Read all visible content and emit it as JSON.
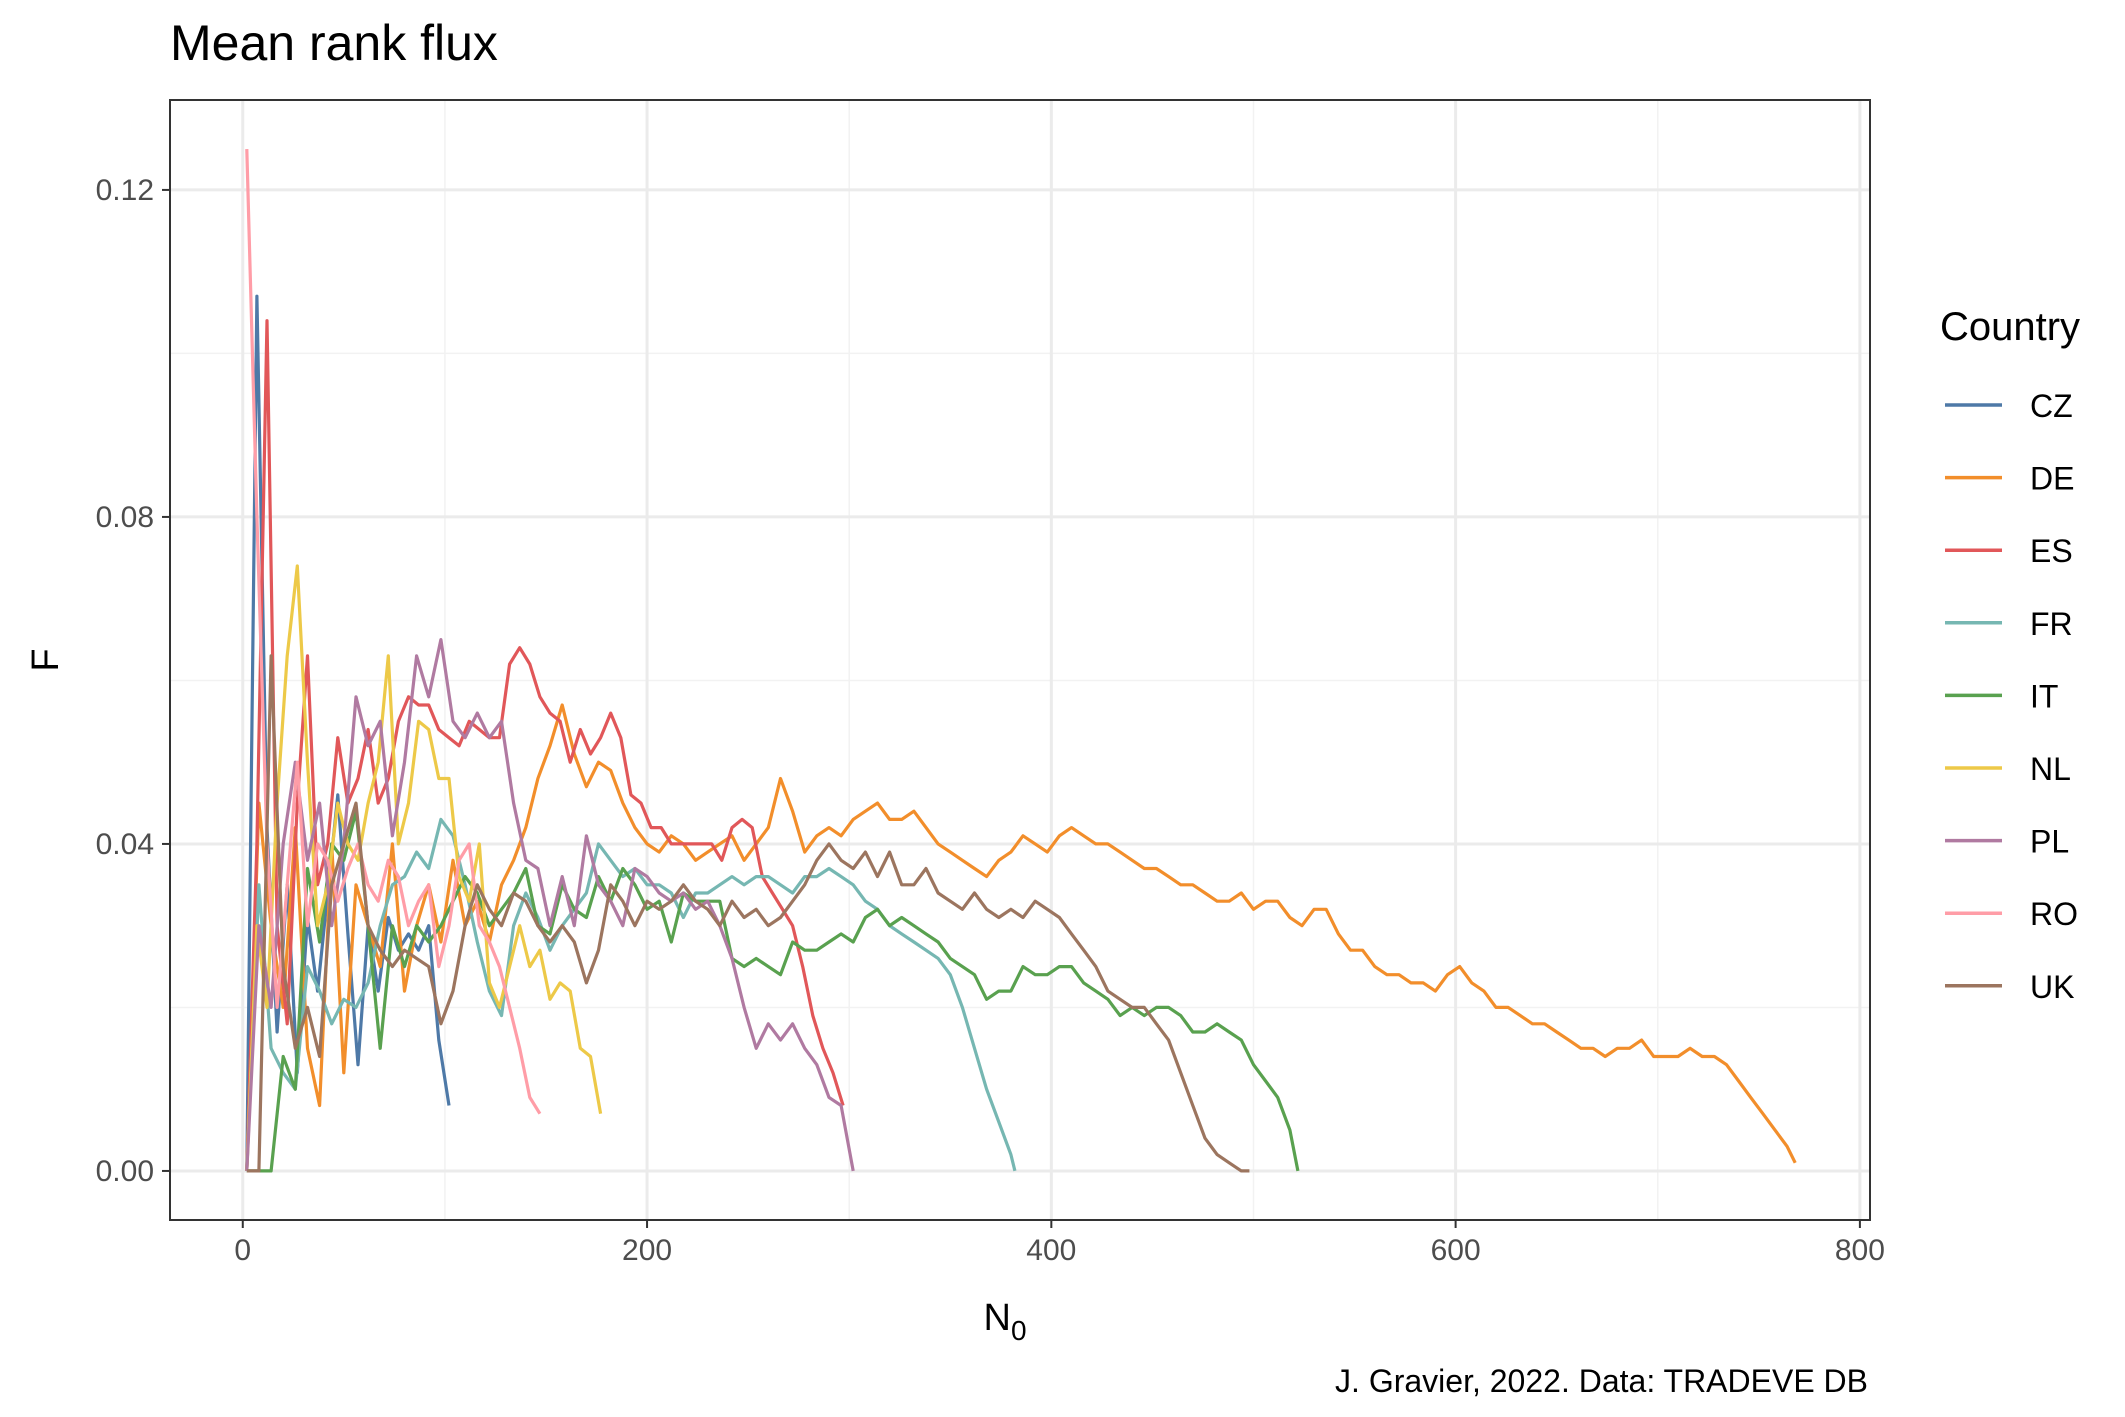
{
  "chart_data": {
    "type": "line",
    "title": "Mean rank flux",
    "xlabel": "N",
    "xlabel_subscript": "0",
    "ylabel": "F",
    "caption": "J. Gravier, 2022. Data: TRADEVE DB",
    "xlim": [
      -36,
      805
    ],
    "ylim": [
      -0.006,
      0.131
    ],
    "x_ticks": [
      0,
      200,
      400,
      600,
      800
    ],
    "x_tick_labels": [
      "0",
      "200",
      "400",
      "600",
      "800"
    ],
    "y_ticks": [
      0.0,
      0.04,
      0.08,
      0.12
    ],
    "y_tick_labels": [
      "0.00",
      "0.04",
      "0.08",
      "0.12"
    ],
    "grid": true,
    "legend": {
      "title": "Country",
      "position": "right"
    },
    "colors": {
      "CZ": "#4e79a7",
      "DE": "#f28e2b",
      "ES": "#e15759",
      "FR": "#76b7b2",
      "IT": "#59a14f",
      "NL": "#edc948",
      "PL": "#b07aa1",
      "RO": "#ff9da7",
      "UK": "#9c755f"
    },
    "series": [
      {
        "name": "CZ",
        "x": [
          2,
          7,
          12,
          17,
          22,
          27,
          32,
          37,
          42,
          47,
          52,
          57,
          62,
          67,
          72,
          77,
          82,
          87,
          92,
          97,
          102
        ],
        "y": [
          0.0,
          0.107,
          0.042,
          0.017,
          0.035,
          0.012,
          0.031,
          0.022,
          0.034,
          0.046,
          0.029,
          0.013,
          0.03,
          0.022,
          0.031,
          0.027,
          0.029,
          0.027,
          0.03,
          0.016,
          0.008
        ]
      },
      {
        "name": "DE",
        "x": [
          2,
          8,
          14,
          20,
          26,
          32,
          38,
          44,
          50,
          56,
          62,
          68,
          74,
          80,
          86,
          92,
          98,
          104,
          110,
          116,
          122,
          128,
          134,
          140,
          146,
          152,
          158,
          164,
          170,
          176,
          182,
          188,
          194,
          200,
          206,
          212,
          218,
          224,
          230,
          236,
          242,
          248,
          254,
          260,
          266,
          272,
          278,
          284,
          290,
          296,
          302,
          308,
          314,
          320,
          326,
          332,
          338,
          344,
          350,
          356,
          362,
          368,
          374,
          380,
          386,
          392,
          398,
          404,
          410,
          416,
          422,
          428,
          434,
          440,
          446,
          452,
          458,
          464,
          470,
          476,
          482,
          488,
          494,
          500,
          506,
          512,
          518,
          524,
          530,
          536,
          542,
          548,
          554,
          560,
          566,
          572,
          578,
          584,
          590,
          596,
          602,
          608,
          614,
          620,
          626,
          632,
          638,
          644,
          650,
          656,
          662,
          668,
          674,
          680,
          686,
          692,
          698,
          704,
          710,
          716,
          722,
          728,
          734,
          740,
          746,
          752,
          758,
          764,
          768
        ],
        "y": [
          0.0,
          0.045,
          0.03,
          0.02,
          0.042,
          0.015,
          0.008,
          0.04,
          0.012,
          0.035,
          0.03,
          0.025,
          0.04,
          0.022,
          0.03,
          0.035,
          0.028,
          0.038,
          0.03,
          0.033,
          0.028,
          0.035,
          0.038,
          0.042,
          0.048,
          0.052,
          0.057,
          0.051,
          0.047,
          0.05,
          0.049,
          0.045,
          0.042,
          0.04,
          0.039,
          0.041,
          0.04,
          0.038,
          0.039,
          0.04,
          0.041,
          0.038,
          0.04,
          0.042,
          0.048,
          0.044,
          0.039,
          0.041,
          0.042,
          0.041,
          0.043,
          0.044,
          0.045,
          0.043,
          0.043,
          0.044,
          0.042,
          0.04,
          0.039,
          0.038,
          0.037,
          0.036,
          0.038,
          0.039,
          0.041,
          0.04,
          0.039,
          0.041,
          0.042,
          0.041,
          0.04,
          0.04,
          0.039,
          0.038,
          0.037,
          0.037,
          0.036,
          0.035,
          0.035,
          0.034,
          0.033,
          0.033,
          0.034,
          0.032,
          0.033,
          0.033,
          0.031,
          0.03,
          0.032,
          0.032,
          0.029,
          0.027,
          0.027,
          0.025,
          0.024,
          0.024,
          0.023,
          0.023,
          0.022,
          0.024,
          0.025,
          0.023,
          0.022,
          0.02,
          0.02,
          0.019,
          0.018,
          0.018,
          0.017,
          0.016,
          0.015,
          0.015,
          0.014,
          0.015,
          0.015,
          0.016,
          0.014,
          0.014,
          0.014,
          0.015,
          0.014,
          0.014,
          0.013,
          0.011,
          0.009,
          0.007,
          0.005,
          0.003,
          0.001
        ]
      },
      {
        "name": "ES",
        "x": [
          2,
          7,
          12,
          17,
          22,
          27,
          32,
          37,
          42,
          47,
          52,
          57,
          62,
          67,
          72,
          77,
          82,
          87,
          92,
          97,
          102,
          107,
          112,
          117,
          122,
          127,
          132,
          137,
          142,
          147,
          152,
          157,
          162,
          167,
          172,
          177,
          182,
          187,
          192,
          197,
          202,
          207,
          212,
          217,
          222,
          227,
          232,
          237,
          242,
          247,
          252,
          257,
          262,
          267,
          272,
          277,
          282,
          287,
          292,
          297
        ],
        "y": [
          0.0,
          0.04,
          0.104,
          0.03,
          0.018,
          0.045,
          0.063,
          0.035,
          0.04,
          0.053,
          0.045,
          0.048,
          0.054,
          0.045,
          0.048,
          0.055,
          0.058,
          0.057,
          0.057,
          0.054,
          0.053,
          0.052,
          0.055,
          0.054,
          0.053,
          0.053,
          0.062,
          0.064,
          0.062,
          0.058,
          0.056,
          0.055,
          0.05,
          0.054,
          0.051,
          0.053,
          0.056,
          0.053,
          0.046,
          0.045,
          0.042,
          0.042,
          0.04,
          0.04,
          0.04,
          0.04,
          0.04,
          0.038,
          0.042,
          0.043,
          0.042,
          0.036,
          0.034,
          0.032,
          0.03,
          0.025,
          0.019,
          0.015,
          0.012,
          0.008
        ]
      },
      {
        "name": "FR",
        "x": [
          2,
          8,
          14,
          20,
          26,
          32,
          38,
          44,
          50,
          56,
          62,
          68,
          74,
          80,
          86,
          92,
          98,
          104,
          110,
          116,
          122,
          128,
          134,
          140,
          146,
          152,
          158,
          164,
          170,
          176,
          182,
          188,
          194,
          200,
          206,
          212,
          218,
          224,
          230,
          236,
          242,
          248,
          254,
          260,
          266,
          272,
          278,
          284,
          290,
          296,
          302,
          308,
          314,
          320,
          326,
          332,
          338,
          344,
          350,
          356,
          362,
          368,
          374,
          380,
          382
        ],
        "y": [
          0.0,
          0.035,
          0.015,
          0.012,
          0.01,
          0.025,
          0.022,
          0.018,
          0.021,
          0.02,
          0.023,
          0.03,
          0.035,
          0.036,
          0.039,
          0.037,
          0.043,
          0.041,
          0.035,
          0.028,
          0.022,
          0.019,
          0.03,
          0.034,
          0.031,
          0.027,
          0.03,
          0.032,
          0.034,
          0.04,
          0.038,
          0.036,
          0.037,
          0.035,
          0.035,
          0.034,
          0.031,
          0.034,
          0.034,
          0.035,
          0.036,
          0.035,
          0.036,
          0.036,
          0.035,
          0.034,
          0.036,
          0.036,
          0.037,
          0.036,
          0.035,
          0.033,
          0.032,
          0.03,
          0.029,
          0.028,
          0.027,
          0.026,
          0.024,
          0.02,
          0.015,
          0.01,
          0.006,
          0.002,
          0.0
        ]
      },
      {
        "name": "IT",
        "x": [
          2,
          8,
          14,
          20,
          26,
          32,
          38,
          44,
          50,
          56,
          62,
          68,
          74,
          80,
          86,
          92,
          98,
          104,
          110,
          116,
          122,
          128,
          134,
          140,
          146,
          152,
          158,
          164,
          170,
          176,
          182,
          188,
          194,
          200,
          206,
          212,
          218,
          224,
          230,
          236,
          242,
          248,
          254,
          260,
          266,
          272,
          278,
          284,
          290,
          296,
          302,
          308,
          314,
          320,
          326,
          332,
          338,
          344,
          350,
          356,
          362,
          368,
          374,
          380,
          386,
          392,
          398,
          404,
          410,
          416,
          422,
          428,
          434,
          440,
          446,
          452,
          458,
          464,
          470,
          476,
          482,
          488,
          494,
          500,
          506,
          512,
          518,
          522
        ],
        "y": [
          0.0,
          0.0,
          0.0,
          0.014,
          0.01,
          0.037,
          0.028,
          0.04,
          0.038,
          0.044,
          0.03,
          0.015,
          0.03,
          0.025,
          0.03,
          0.028,
          0.03,
          0.033,
          0.036,
          0.034,
          0.03,
          0.032,
          0.034,
          0.037,
          0.03,
          0.029,
          0.035,
          0.032,
          0.031,
          0.036,
          0.033,
          0.037,
          0.035,
          0.032,
          0.033,
          0.028,
          0.034,
          0.033,
          0.033,
          0.033,
          0.026,
          0.025,
          0.026,
          0.025,
          0.024,
          0.028,
          0.027,
          0.027,
          0.028,
          0.029,
          0.028,
          0.031,
          0.032,
          0.03,
          0.031,
          0.03,
          0.029,
          0.028,
          0.026,
          0.025,
          0.024,
          0.021,
          0.022,
          0.022,
          0.025,
          0.024,
          0.024,
          0.025,
          0.025,
          0.023,
          0.022,
          0.021,
          0.019,
          0.02,
          0.019,
          0.02,
          0.02,
          0.019,
          0.017,
          0.017,
          0.018,
          0.017,
          0.016,
          0.013,
          0.011,
          0.009,
          0.005,
          0.0
        ]
      },
      {
        "name": "NL",
        "x": [
          2,
          7,
          12,
          17,
          22,
          27,
          32,
          37,
          42,
          47,
          52,
          57,
          62,
          67,
          72,
          77,
          82,
          87,
          92,
          97,
          102,
          107,
          112,
          117,
          122,
          127,
          132,
          137,
          142,
          147,
          152,
          157,
          162,
          167,
          172,
          177
        ],
        "y": [
          0.0,
          0.03,
          0.02,
          0.045,
          0.063,
          0.074,
          0.05,
          0.03,
          0.035,
          0.045,
          0.04,
          0.038,
          0.045,
          0.05,
          0.063,
          0.04,
          0.045,
          0.055,
          0.054,
          0.048,
          0.048,
          0.036,
          0.033,
          0.04,
          0.023,
          0.02,
          0.025,
          0.03,
          0.025,
          0.027,
          0.021,
          0.023,
          0.022,
          0.015,
          0.014,
          0.007
        ]
      },
      {
        "name": "PL",
        "x": [
          2,
          8,
          14,
          20,
          26,
          32,
          38,
          44,
          50,
          56,
          62,
          68,
          74,
          80,
          86,
          92,
          98,
          104,
          110,
          116,
          122,
          128,
          134,
          140,
          146,
          152,
          158,
          164,
          170,
          176,
          182,
          188,
          194,
          200,
          206,
          212,
          218,
          224,
          230,
          236,
          242,
          248,
          254,
          260,
          266,
          272,
          278,
          284,
          290,
          296,
          302
        ],
        "y": [
          0.0,
          0.03,
          0.02,
          0.04,
          0.05,
          0.038,
          0.045,
          0.03,
          0.04,
          0.058,
          0.052,
          0.055,
          0.041,
          0.05,
          0.063,
          0.058,
          0.065,
          0.055,
          0.053,
          0.056,
          0.053,
          0.055,
          0.045,
          0.038,
          0.037,
          0.03,
          0.036,
          0.03,
          0.041,
          0.035,
          0.033,
          0.03,
          0.037,
          0.036,
          0.034,
          0.033,
          0.034,
          0.032,
          0.033,
          0.03,
          0.026,
          0.02,
          0.015,
          0.018,
          0.016,
          0.018,
          0.015,
          0.013,
          0.009,
          0.008,
          0.0
        ]
      },
      {
        "name": "RO",
        "x": [
          2,
          7,
          12,
          17,
          22,
          27,
          32,
          37,
          42,
          47,
          52,
          57,
          62,
          67,
          72,
          77,
          82,
          87,
          92,
          97,
          102,
          107,
          112,
          117,
          122,
          127,
          132,
          137,
          142,
          147
        ],
        "y": [
          0.125,
          0.08,
          0.04,
          0.02,
          0.035,
          0.05,
          0.03,
          0.04,
          0.038,
          0.033,
          0.037,
          0.04,
          0.035,
          0.033,
          0.038,
          0.036,
          0.03,
          0.033,
          0.035,
          0.025,
          0.03,
          0.038,
          0.04,
          0.03,
          0.028,
          0.025,
          0.02,
          0.015,
          0.009,
          0.007
        ]
      },
      {
        "name": "UK",
        "x": [
          2,
          8,
          14,
          20,
          26,
          32,
          38,
          44,
          50,
          56,
          62,
          68,
          74,
          80,
          86,
          92,
          98,
          104,
          110,
          116,
          122,
          128,
          134,
          140,
          146,
          152,
          158,
          164,
          170,
          176,
          182,
          188,
          194,
          200,
          206,
          212,
          218,
          224,
          230,
          236,
          242,
          248,
          254,
          260,
          266,
          272,
          278,
          284,
          290,
          296,
          302,
          308,
          314,
          320,
          326,
          332,
          338,
          344,
          350,
          356,
          362,
          368,
          374,
          380,
          386,
          392,
          398,
          404,
          410,
          416,
          422,
          428,
          434,
          440,
          446,
          452,
          458,
          464,
          470,
          476,
          482,
          488,
          494,
          498
        ],
        "y": [
          0.0,
          0.0,
          0.063,
          0.025,
          0.015,
          0.02,
          0.014,
          0.035,
          0.04,
          0.045,
          0.03,
          0.027,
          0.025,
          0.027,
          0.026,
          0.025,
          0.018,
          0.022,
          0.03,
          0.035,
          0.032,
          0.03,
          0.034,
          0.033,
          0.03,
          0.028,
          0.03,
          0.028,
          0.023,
          0.027,
          0.035,
          0.033,
          0.03,
          0.033,
          0.032,
          0.033,
          0.035,
          0.033,
          0.032,
          0.03,
          0.033,
          0.031,
          0.032,
          0.03,
          0.031,
          0.033,
          0.035,
          0.038,
          0.04,
          0.038,
          0.037,
          0.039,
          0.036,
          0.039,
          0.035,
          0.035,
          0.037,
          0.034,
          0.033,
          0.032,
          0.034,
          0.032,
          0.031,
          0.032,
          0.031,
          0.033,
          0.032,
          0.031,
          0.029,
          0.027,
          0.025,
          0.022,
          0.021,
          0.02,
          0.02,
          0.018,
          0.016,
          0.012,
          0.008,
          0.004,
          0.002,
          0.001,
          0.0,
          0.0
        ]
      }
    ]
  }
}
